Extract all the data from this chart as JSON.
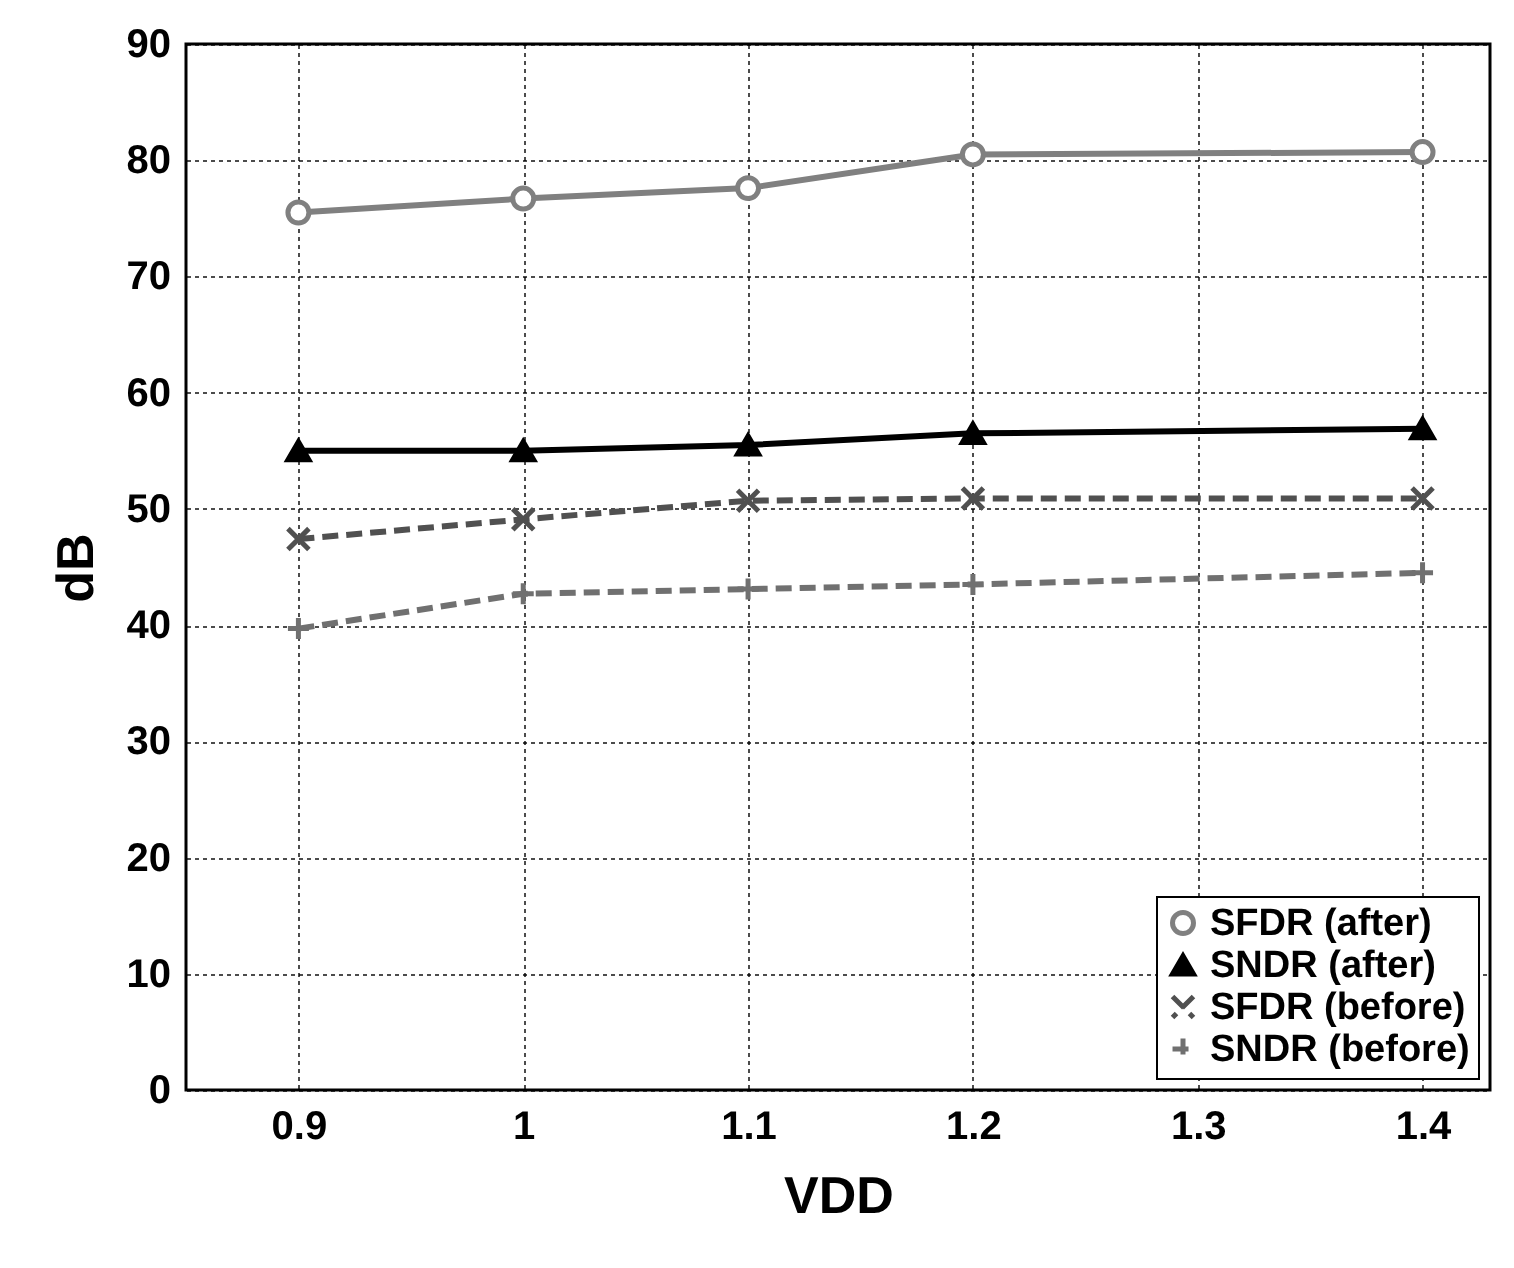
{
  "chart_data": {
    "type": "line",
    "xlabel": "VDD",
    "ylabel": "dB",
    "xlim": [
      0.85,
      1.43
    ],
    "xticks": [
      0.9,
      1,
      1.1,
      1.2,
      1.3,
      1.4
    ],
    "ylim": [
      0,
      90
    ],
    "yticks": [
      0,
      10,
      20,
      30,
      40,
      50,
      60,
      70,
      80,
      90
    ],
    "x": [
      0.9,
      1,
      1.1,
      1.2,
      1.4
    ],
    "series": [
      {
        "name": "SFDR (after)",
        "color": "#808080",
        "marker": "circle",
        "line_style": "solid",
        "values": [
          75.5,
          76.7,
          77.6,
          80.5,
          80.7
        ]
      },
      {
        "name": "SNDR (after)",
        "color": "#000000",
        "marker": "triangle",
        "line_style": "solid",
        "values": [
          55,
          55,
          55.5,
          56.5,
          56.9
        ]
      },
      {
        "name": "SFDR (before)",
        "color": "#505050",
        "marker": "cross",
        "line_style": "dashed",
        "values": [
          47.4,
          49.1,
          50.7,
          50.9,
          50.9
        ]
      },
      {
        "name": "SNDR (before)",
        "color": "#707070",
        "marker": "plus",
        "line_style": "dashed",
        "values": [
          39.7,
          42.7,
          43.1,
          43.5,
          44.5
        ]
      }
    ],
    "grid": true,
    "legend": "bottom right"
  }
}
